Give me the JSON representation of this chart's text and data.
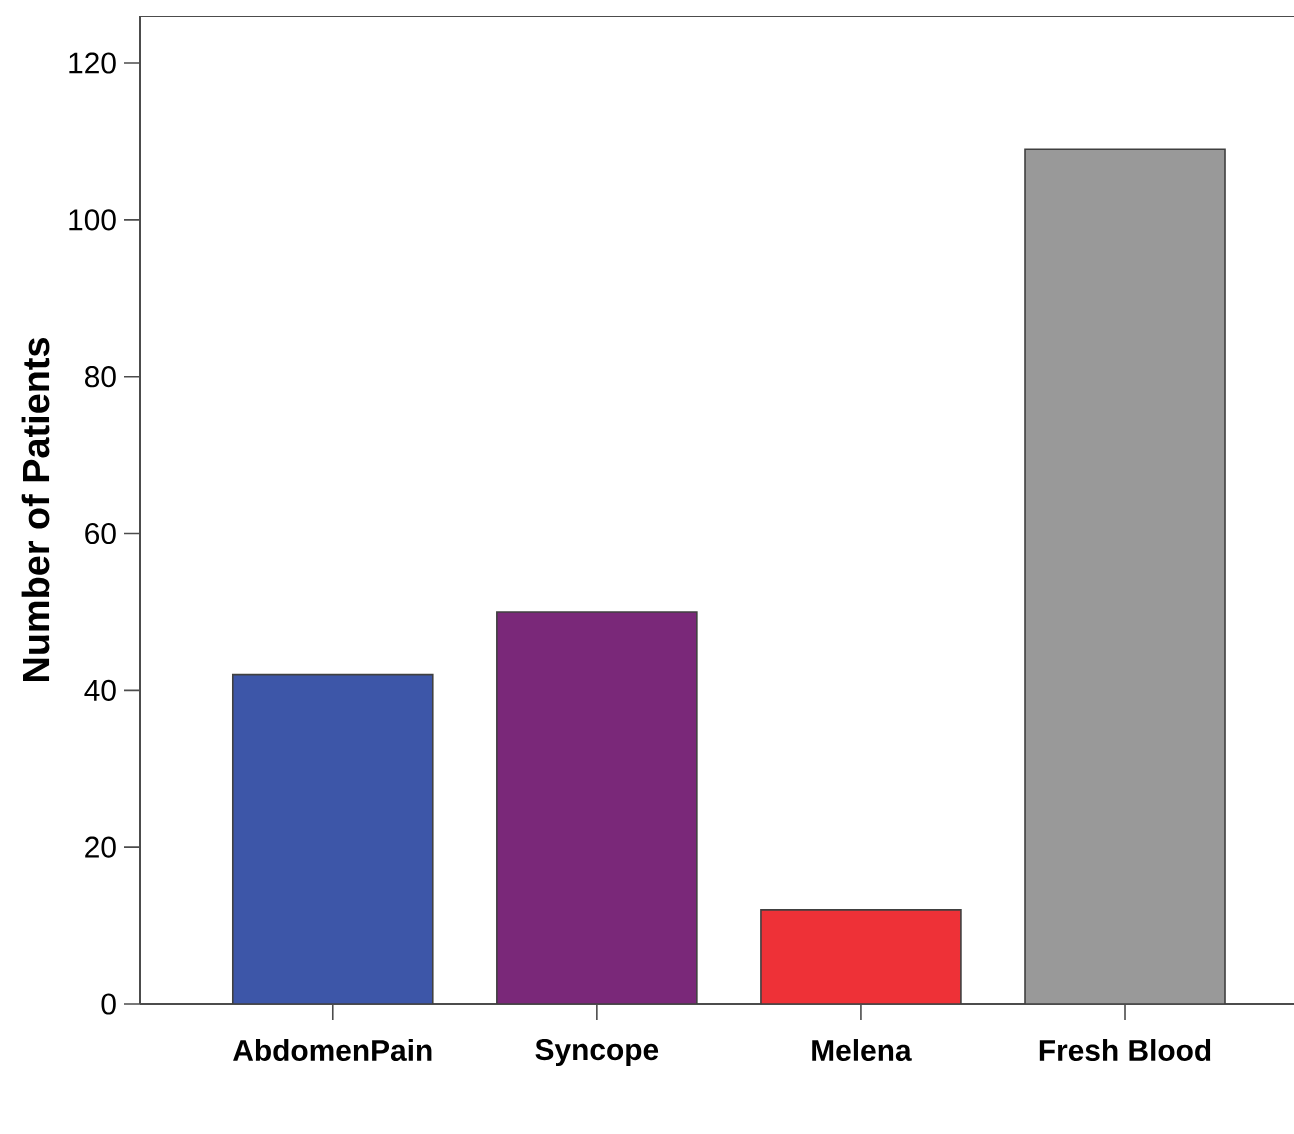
{
  "chart_data": {
    "type": "bar",
    "ylabel": "Number of Patients",
    "categories": [
      "AbdomenPain",
      "Syncope",
      "Melena",
      "Fresh Blood"
    ],
    "values": [
      42,
      50,
      12,
      109
    ],
    "colors": [
      "#3d56a8",
      "#7a2879",
      "#ee3137",
      "#999999"
    ],
    "ylim": [
      0,
      126
    ],
    "yticks": [
      0,
      20,
      40,
      60,
      80,
      100,
      120
    ],
    "grid": false
  }
}
